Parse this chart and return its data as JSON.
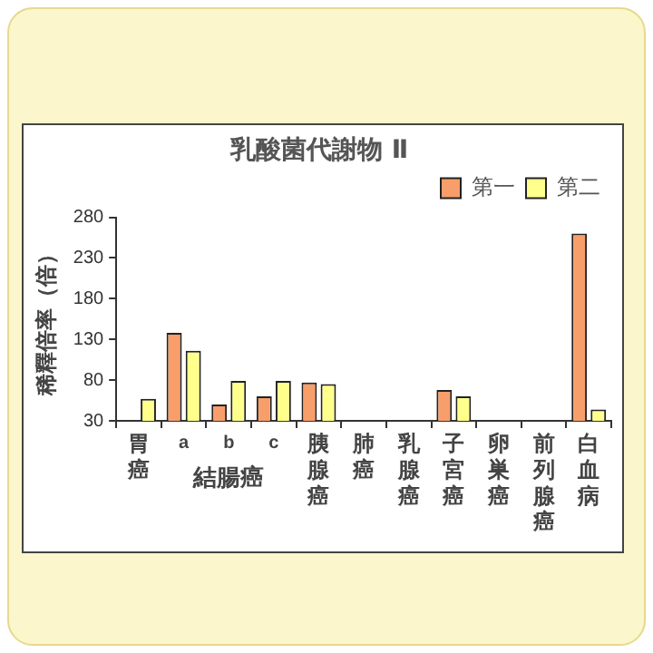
{
  "chart_data": {
    "type": "bar",
    "title": "乳酸菌代謝物 Ⅱ",
    "ylabel": "稀釋倍率（倍）",
    "categories": [
      "胃癌",
      "a",
      "b",
      "c",
      "胰腺癌",
      "肺癌",
      "乳腺癌",
      "子宮癌",
      "卵巣癌",
      "前列腺癌",
      "白血病"
    ],
    "series": [
      {
        "name": "第一",
        "color": "#f79e6a",
        "values": [
          null,
          138,
          50,
          60,
          77,
          null,
          null,
          68,
          null,
          null,
          260
        ]
      },
      {
        "name": "第二",
        "color": "#ffff8c",
        "values": [
          57,
          116,
          79,
          79,
          75,
          null,
          null,
          60,
          null,
          null,
          44
        ]
      }
    ],
    "ylim": [
      30,
      280
    ],
    "yticks": [
      30,
      80,
      130,
      180,
      230,
      280
    ],
    "annotations": [
      "結腸癌"
    ],
    "legend": "top right",
    "grid": false
  }
}
